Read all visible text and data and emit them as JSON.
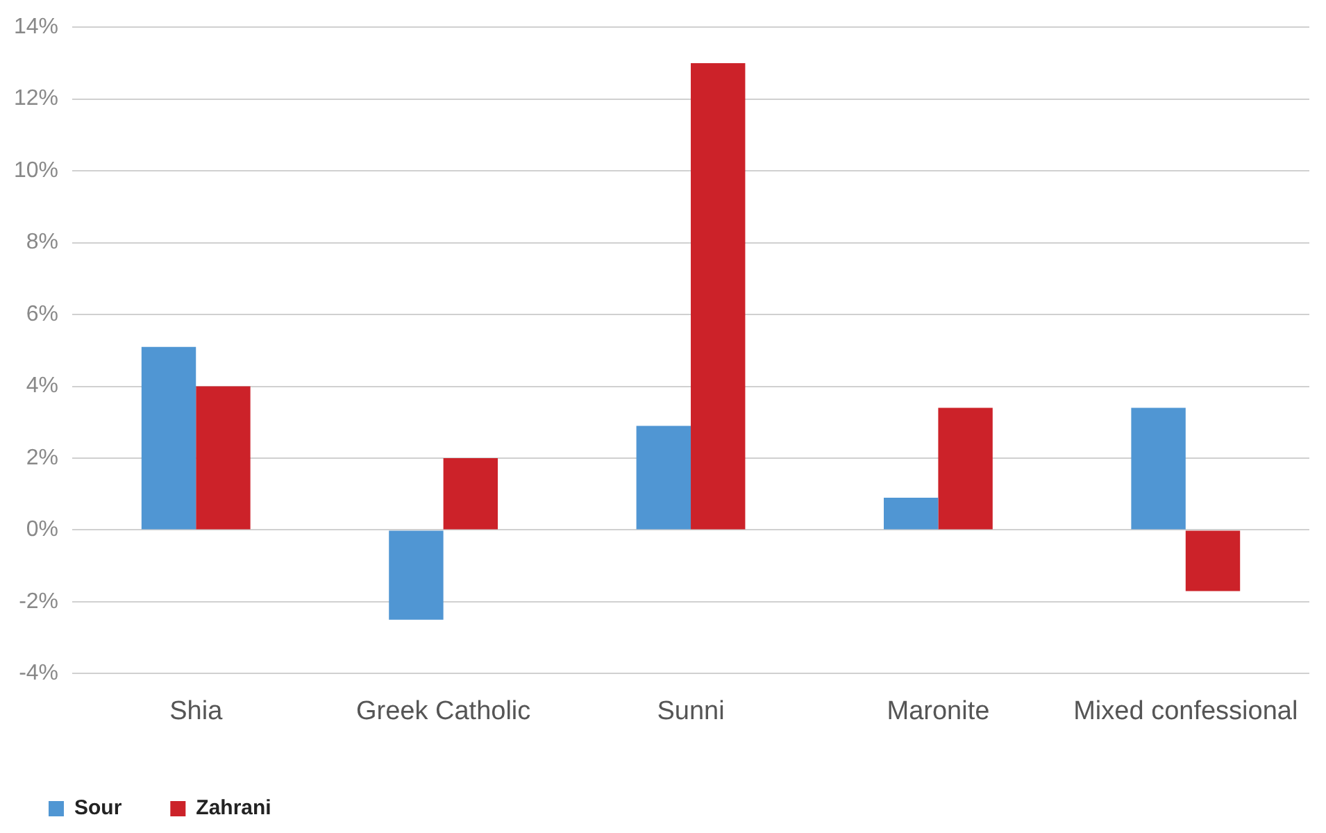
{
  "chart_data": {
    "type": "bar",
    "categories": [
      "Shia",
      "Greek Catholic",
      "Sunni",
      "Maronite",
      "Mixed confessional"
    ],
    "series": [
      {
        "name": "Sour",
        "color": "#5096d3",
        "values": [
          5.1,
          -2.5,
          2.9,
          0.9,
          3.4
        ]
      },
      {
        "name": "Zahrani",
        "color": "#cc2229",
        "values": [
          4.0,
          2.0,
          13.0,
          3.4,
          -1.7
        ]
      }
    ],
    "ylim": [
      -4,
      14
    ],
    "yticks": [
      {
        "value": -4,
        "label": "-4%"
      },
      {
        "value": -2,
        "label": "-2%"
      },
      {
        "value": 0,
        "label": "0%"
      },
      {
        "value": 2,
        "label": "2%"
      },
      {
        "value": 4,
        "label": "4%"
      },
      {
        "value": 6,
        "label": "6%"
      },
      {
        "value": 8,
        "label": "8%"
      },
      {
        "value": 10,
        "label": "10%"
      },
      {
        "value": 12,
        "label": "12%"
      },
      {
        "value": 14,
        "label": "14%"
      }
    ],
    "grid": "y",
    "legend": "bottom left"
  }
}
